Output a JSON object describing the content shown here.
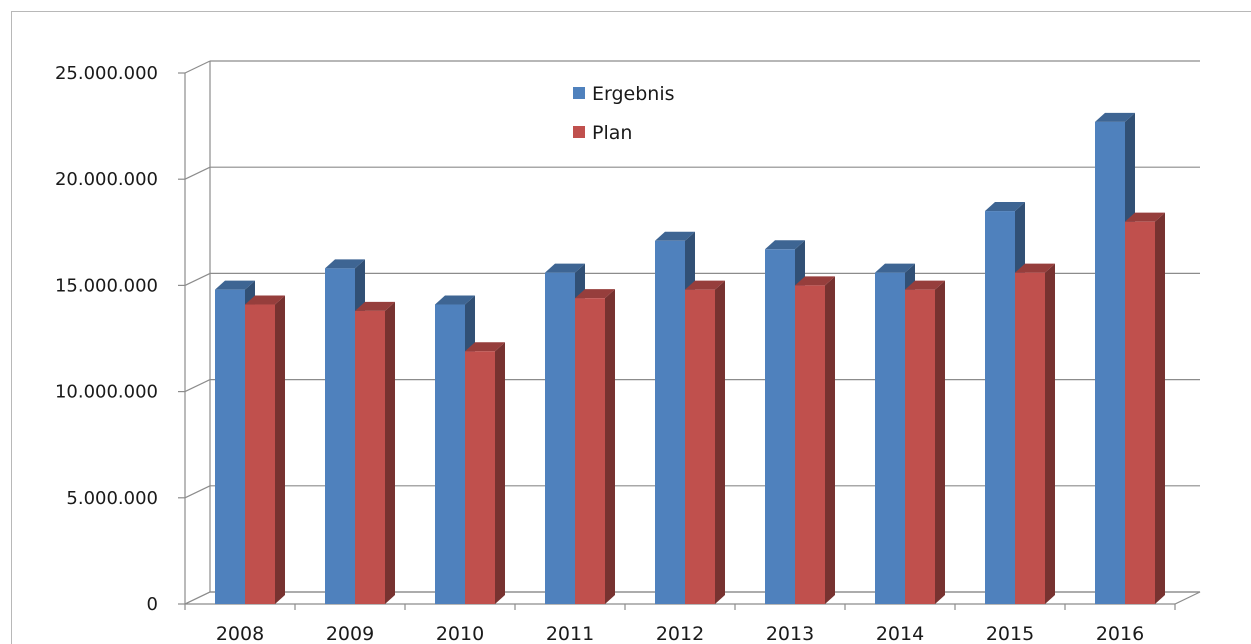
{
  "chart_data": {
    "type": "bar",
    "title": "",
    "xlabel": "",
    "ylabel": "",
    "categories": [
      "2008",
      "2009",
      "2010",
      "2011",
      "2012",
      "2013",
      "2014",
      "2015",
      "2016"
    ],
    "series": [
      {
        "name": "Ergebnis",
        "color": "#4F81BD",
        "values": [
          14800000,
          15800000,
          14100000,
          15600000,
          17100000,
          16700000,
          15600000,
          18500000,
          22700000
        ]
      },
      {
        "name": "Plan",
        "color": "#C0504D",
        "values": [
          14100000,
          13800000,
          11900000,
          14400000,
          14800000,
          15000000,
          14800000,
          15600000,
          18000000
        ]
      }
    ],
    "ylim": [
      0,
      25000000
    ],
    "y_ticks": [
      0,
      5000000,
      10000000,
      15000000,
      20000000,
      25000000
    ],
    "y_tick_labels": [
      "0",
      "5.000.000",
      "10.000.000",
      "15.000.000",
      "20.000.000",
      "25.000.000"
    ],
    "grid": true,
    "legend_position": "top-center",
    "style": "3d-clustered-column"
  }
}
